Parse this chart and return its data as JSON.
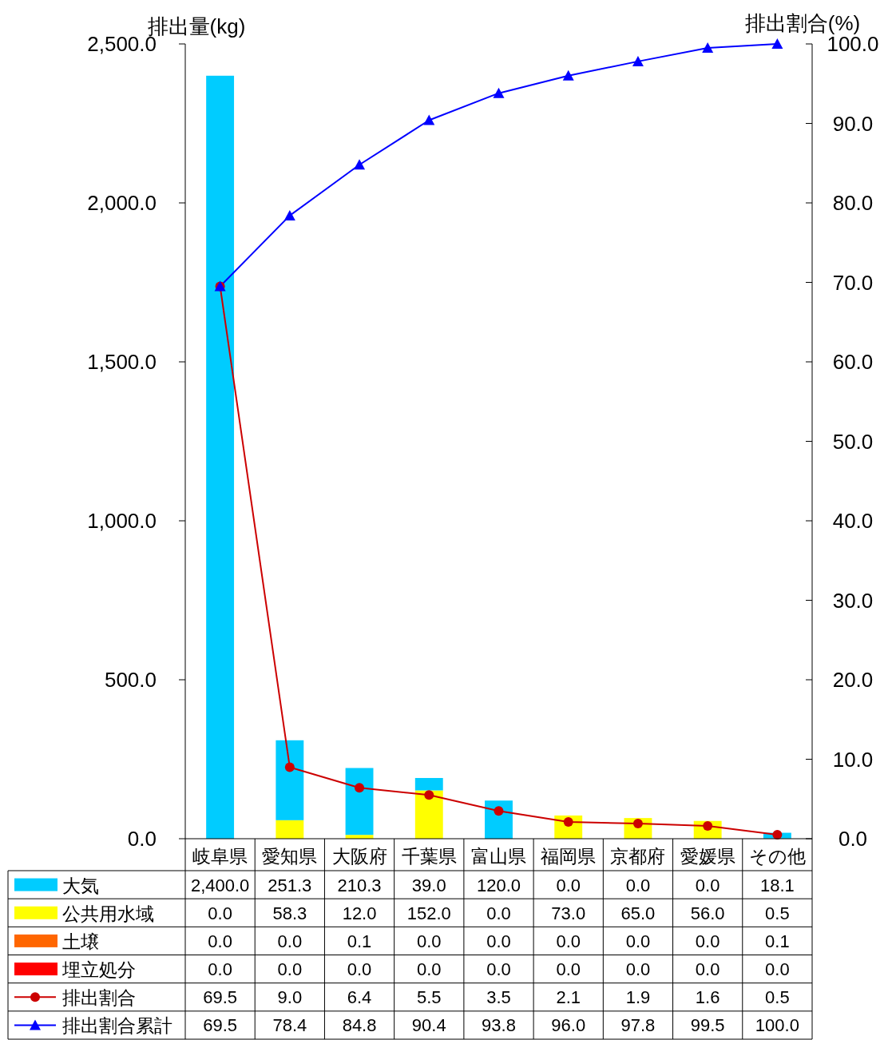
{
  "chart_data": {
    "type": "bar",
    "stacked": true,
    "ylabel": "排出量(kg)",
    "y2label": "排出割合(%)",
    "categories": [
      "岐阜県",
      "愛知県",
      "大阪府",
      "千葉県",
      "富山県",
      "福岡県",
      "京都府",
      "愛媛県",
      "その他"
    ],
    "ylim": [
      0,
      2500
    ],
    "yticks": [
      {
        "value": 0,
        "label": "0.0"
      },
      {
        "value": 500,
        "label": "500.0"
      },
      {
        "value": 1000,
        "label": "1,000.0"
      },
      {
        "value": 1500,
        "label": "1,500.0"
      },
      {
        "value": 2000,
        "label": "2,000.0"
      },
      {
        "value": 2500,
        "label": "2,500.0"
      }
    ],
    "y2lim": [
      0,
      100
    ],
    "y2ticks": [
      {
        "value": 0,
        "label": "0.0"
      },
      {
        "value": 10,
        "label": "10.0"
      },
      {
        "value": 20,
        "label": "20.0"
      },
      {
        "value": 30,
        "label": "30.0"
      },
      {
        "value": 40,
        "label": "40.0"
      },
      {
        "value": 50,
        "label": "50.0"
      },
      {
        "value": 60,
        "label": "60.0"
      },
      {
        "value": 70,
        "label": "70.0"
      },
      {
        "value": 80,
        "label": "80.0"
      },
      {
        "value": 90,
        "label": "90.0"
      },
      {
        "value": 100,
        "label": "100.0"
      }
    ],
    "legend": "bottom",
    "grid": false,
    "series": [
      {
        "name": "埋立処分",
        "color": "#ff0000",
        "values": [
          0,
          0,
          0,
          0,
          0,
          0,
          0,
          0,
          0
        ],
        "value_labels": [
          "0.0",
          "0.0",
          "0.0",
          "0.0",
          "0.0",
          "0.0",
          "0.0",
          "0.0",
          "0.0"
        ]
      },
      {
        "name": "土壌",
        "color": "#ff6600",
        "values": [
          0,
          0,
          0.1,
          0,
          0,
          0,
          0,
          0,
          0.1
        ],
        "value_labels": [
          "0.0",
          "0.0",
          "0.1",
          "0.0",
          "0.0",
          "0.0",
          "0.0",
          "0.0",
          "0.1"
        ]
      },
      {
        "name": "公共用水域",
        "color": "#ffff00",
        "values": [
          0,
          58.3,
          12,
          152,
          0,
          73,
          65,
          56,
          0.5
        ],
        "value_labels": [
          "0.0",
          "58.3",
          "12.0",
          "152.0",
          "0.0",
          "73.0",
          "65.0",
          "56.0",
          "0.5"
        ]
      },
      {
        "name": "大気",
        "color": "#00ccff",
        "values": [
          2400,
          251.3,
          210.3,
          39,
          120,
          0,
          0,
          0,
          18.1
        ],
        "value_labels": [
          "2,400.0",
          "251.3",
          "210.3",
          "39.0",
          "120.0",
          "0.0",
          "0.0",
          "0.0",
          "18.1"
        ]
      },
      {
        "name": "排出割合",
        "type": "line",
        "axis": "y2",
        "marker": "circle",
        "line_style": "solid",
        "color": "#cc0000",
        "values": [
          69.5,
          9.0,
          6.4,
          5.5,
          3.5,
          2.1,
          1.9,
          1.6,
          0.5
        ],
        "value_labels": [
          "69.5",
          "9.0",
          "6.4",
          "5.5",
          "3.5",
          "2.1",
          "1.9",
          "1.6",
          "0.5"
        ]
      },
      {
        "name": "排出割合累計",
        "type": "line",
        "axis": "y2",
        "marker": "triangle",
        "line_style": "solid",
        "color": "#0000ff",
        "values": [
          69.5,
          78.4,
          84.8,
          90.4,
          93.8,
          96.0,
          97.8,
          99.5,
          100.0
        ],
        "value_labels": [
          "69.5",
          "78.4",
          "84.8",
          "90.4",
          "93.8",
          "96.0",
          "97.8",
          "99.5",
          "100.0"
        ]
      }
    ]
  }
}
